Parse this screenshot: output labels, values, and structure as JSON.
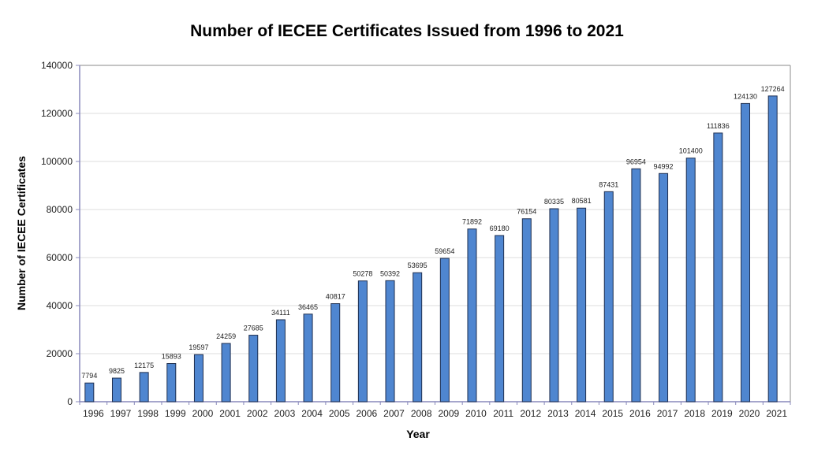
{
  "chart_data": {
    "type": "bar",
    "title": "Number of IECEE Certificates Issued from 1996 to 2021",
    "xlabel": "Year",
    "ylabel": "Number of IECEE Certificates",
    "ylim": [
      0,
      140000
    ],
    "yticks": [
      0,
      20000,
      40000,
      60000,
      80000,
      100000,
      120000,
      140000
    ],
    "grid": true,
    "legend": null,
    "bar_color": "#4f86d0",
    "bar_edge_color": "#1f2f4f",
    "categories": [
      "1996",
      "1997",
      "1998",
      "1999",
      "2000",
      "2001",
      "2002",
      "2003",
      "2004",
      "2005",
      "2006",
      "2007",
      "2008",
      "2009",
      "2010",
      "2011",
      "2012",
      "2013",
      "2014",
      "2015",
      "2016",
      "2017",
      "2018",
      "2019",
      "2020",
      "2021"
    ],
    "values": [
      7794,
      9825,
      12175,
      15893,
      19597,
      24259,
      27685,
      34111,
      36465,
      40817,
      50278,
      50392,
      53695,
      59654,
      71892,
      69180,
      76154,
      80335,
      80581,
      87431,
      96954,
      94992,
      101400,
      111836,
      124130,
      127264
    ]
  }
}
